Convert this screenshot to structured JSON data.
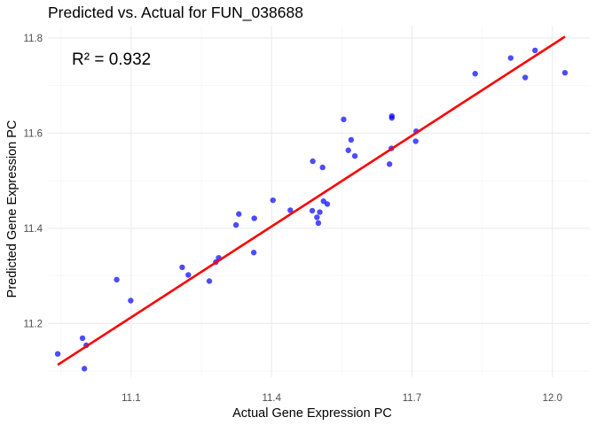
{
  "chart_data": {
    "type": "scatter",
    "title": "Predicted vs. Actual for FUN_038688",
    "xlabel": "Actual Gene Expression PC",
    "ylabel": "Predicted Gene Expression PC",
    "annotation": "R² = 0.932",
    "xlim": [
      10.922,
      12.08
    ],
    "ylim": [
      11.087,
      11.826
    ],
    "x_ticks": [
      11.1,
      11.4,
      11.7,
      12.0
    ],
    "x_tick_labels": [
      "11.1",
      "11.4",
      "11.7",
      "12.0"
    ],
    "y_ticks": [
      11.2,
      11.4,
      11.6,
      11.8
    ],
    "y_tick_labels": [
      "11.2",
      "11.4",
      "11.6",
      "11.8"
    ],
    "grid": true,
    "legend": "none",
    "point_color": "#0000ff",
    "line_color": "#ff0000",
    "points": [
      {
        "x": 10.943,
        "y": 11.136
      },
      {
        "x": 10.996,
        "y": 11.169
      },
      {
        "x": 11.0,
        "y": 11.105
      },
      {
        "x": 11.004,
        "y": 11.154
      },
      {
        "x": 11.069,
        "y": 11.292
      },
      {
        "x": 11.099,
        "y": 11.248
      },
      {
        "x": 11.209,
        "y": 11.318
      },
      {
        "x": 11.222,
        "y": 11.302
      },
      {
        "x": 11.267,
        "y": 11.289
      },
      {
        "x": 11.281,
        "y": 11.329
      },
      {
        "x": 11.287,
        "y": 11.338
      },
      {
        "x": 11.324,
        "y": 11.407
      },
      {
        "x": 11.33,
        "y": 11.43
      },
      {
        "x": 11.362,
        "y": 11.349
      },
      {
        "x": 11.363,
        "y": 11.421
      },
      {
        "x": 11.403,
        "y": 11.459
      },
      {
        "x": 11.44,
        "y": 11.438
      },
      {
        "x": 11.487,
        "y": 11.437
      },
      {
        "x": 11.497,
        "y": 11.423
      },
      {
        "x": 11.5,
        "y": 11.411
      },
      {
        "x": 11.503,
        "y": 11.434
      },
      {
        "x": 11.511,
        "y": 11.457
      },
      {
        "x": 11.519,
        "y": 11.451
      },
      {
        "x": 11.488,
        "y": 11.541
      },
      {
        "x": 11.509,
        "y": 11.528
      },
      {
        "x": 11.554,
        "y": 11.629
      },
      {
        "x": 11.564,
        "y": 11.564
      },
      {
        "x": 11.57,
        "y": 11.586
      },
      {
        "x": 11.578,
        "y": 11.552
      },
      {
        "x": 11.652,
        "y": 11.535
      },
      {
        "x": 11.656,
        "y": 11.568
      },
      {
        "x": 11.657,
        "y": 11.632
      },
      {
        "x": 11.657,
        "y": 11.636
      },
      {
        "x": 11.708,
        "y": 11.583
      },
      {
        "x": 11.709,
        "y": 11.604
      },
      {
        "x": 11.835,
        "y": 11.725
      },
      {
        "x": 11.911,
        "y": 11.758
      },
      {
        "x": 11.942,
        "y": 11.717
      },
      {
        "x": 11.963,
        "y": 11.774
      },
      {
        "x": 12.027,
        "y": 11.727
      }
    ],
    "fit_line": {
      "x": [
        10.943,
        12.027
      ],
      "y": [
        11.113,
        11.803
      ]
    }
  }
}
